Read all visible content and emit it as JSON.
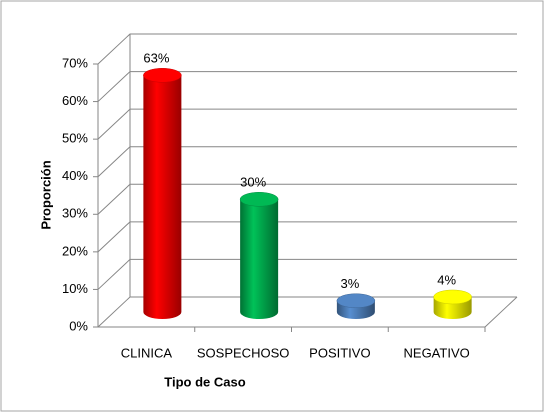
{
  "chart_data": {
    "type": "bar3d",
    "x_label": "Tipo de Caso",
    "y_label": "Proporción",
    "categories": [
      "CLINICA",
      "SOSPECHOSO",
      "POSITIVO",
      "NEGATIVO"
    ],
    "values": [
      63,
      30,
      3,
      4
    ],
    "value_labels": [
      "63%",
      "30%",
      "3%",
      "4%"
    ],
    "colors": [
      "#ff0000",
      "#00b050",
      "#4f81bd",
      "#ffff00"
    ],
    "ylim": [
      0,
      70
    ],
    "yticks": [
      {
        "value": 0,
        "label": "0%"
      },
      {
        "value": 10,
        "label": "10%"
      },
      {
        "value": 20,
        "label": "20%"
      },
      {
        "value": 30,
        "label": "30%"
      },
      {
        "value": 40,
        "label": "40%"
      },
      {
        "value": 50,
        "label": "50%"
      },
      {
        "value": 60,
        "label": "60%"
      },
      {
        "value": 70,
        "label": "70%"
      }
    ],
    "grid": true
  }
}
